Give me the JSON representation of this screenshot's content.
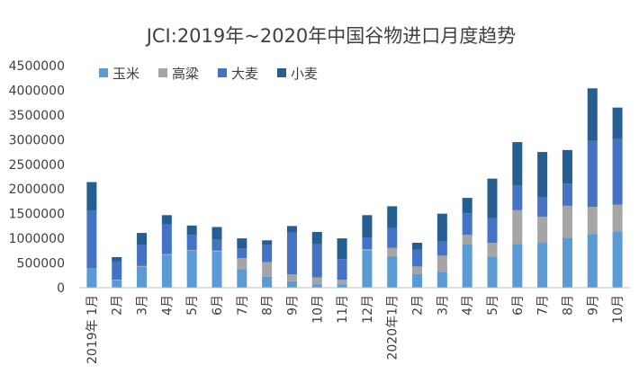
{
  "chart_data": {
    "type": "bar",
    "stacked": true,
    "title": "JCI:2019年~2020年中国谷物进口月度趋势",
    "categories": [
      "2019年 1月",
      "2月",
      "3月",
      "4月",
      "5月",
      "6月",
      "7月",
      "8月",
      "9月",
      "10月",
      "11月",
      "12月",
      "2020年1月",
      "2月",
      "3月",
      "4月",
      "5月",
      "6月",
      "7月",
      "8月",
      "9月",
      "10月"
    ],
    "series": [
      {
        "name": "玉米",
        "color": "#5b9bd5",
        "values": [
          400000,
          150000,
          420000,
          670000,
          750000,
          730000,
          380000,
          220000,
          130000,
          70000,
          70000,
          760000,
          640000,
          280000,
          320000,
          890000,
          630000,
          890000,
          910000,
          1010000,
          1090000,
          1140000
        ]
      },
      {
        "name": "高粱",
        "color": "#a5a5a5",
        "values": [
          0,
          10000,
          20000,
          10000,
          10000,
          20000,
          220000,
          300000,
          140000,
          140000,
          90000,
          20000,
          170000,
          150000,
          330000,
          180000,
          280000,
          680000,
          530000,
          650000,
          550000,
          540000
        ]
      },
      {
        "name": "大麦",
        "color": "#4472c4",
        "values": [
          1160000,
          370000,
          420000,
          600000,
          310000,
          220000,
          200000,
          340000,
          850000,
          670000,
          420000,
          240000,
          400000,
          340000,
          290000,
          440000,
          500000,
          500000,
          400000,
          450000,
          1340000,
          1330000
        ]
      },
      {
        "name": "小麦",
        "color": "#255e91",
        "values": [
          580000,
          90000,
          250000,
          190000,
          190000,
          260000,
          200000,
          100000,
          130000,
          250000,
          420000,
          450000,
          440000,
          140000,
          560000,
          310000,
          800000,
          880000,
          910000,
          680000,
          1060000,
          640000
        ]
      }
    ],
    "y_ticks": [
      "0",
      "500000",
      "1000000",
      "1500000",
      "2000000",
      "2500000",
      "3000000",
      "3500000",
      "4000000",
      "4500000"
    ],
    "ylim": [
      0,
      4500000
    ],
    "grid": false,
    "legend_position": "top-left"
  }
}
